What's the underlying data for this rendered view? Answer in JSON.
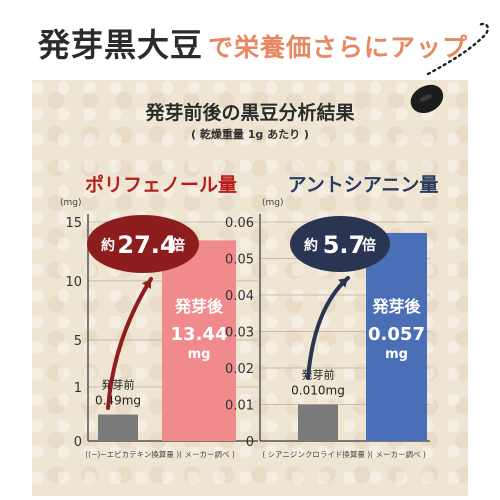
{
  "header": {
    "title_main": "発芽黒大豆",
    "title_sub": "で栄養価さらにアップ"
  },
  "panel": {
    "title": "発芽前後の黒豆分析結果",
    "subtitle": "( 乾燥重量 1g あたり )"
  },
  "colors": {
    "background": "#efe5d3",
    "title_accent": "#e88863",
    "polyphenol_heading": "#b81c1c",
    "polyphenol_bubble": "#8e1e1e",
    "polyphenol_after_bar": "#f08a8c",
    "anthocyanin_heading": "#2c3a5e",
    "anthocyanin_bubble": "#2a3553",
    "anthocyanin_after_bar": "#4a6fb6",
    "before_bar": "#7a7a7a"
  },
  "icons": {
    "decoration": "black-bean-icon"
  },
  "chart_data": [
    {
      "type": "bar",
      "title": "ポリフェノール量",
      "unit": "(mg)",
      "note": "((−)−エピカテキン換算量 )( メーカー調べ )",
      "ylim": [
        0,
        15
      ],
      "yticks": [
        0,
        1,
        5,
        10,
        15
      ],
      "y_scale": "non-linear (0–1 expanded)",
      "grid": true,
      "categories": [
        "発芽前",
        "発芽後"
      ],
      "values": [
        0.49,
        13.44
      ],
      "value_labels": [
        "0.49mg",
        "13.44"
      ],
      "value_unit_labels": [
        "",
        "mg"
      ],
      "callout": {
        "prefix": "約",
        "value": "27.4",
        "suffix": "倍"
      }
    },
    {
      "type": "bar",
      "title": "アントシアニン量",
      "unit": "(mg)",
      "note": "( シアニジンクロライド換算量 )( メーカー調べ )",
      "ylim": [
        0,
        0.06
      ],
      "yticks": [
        0,
        0.01,
        0.02,
        0.03,
        0.04,
        0.05,
        0.06
      ],
      "y_scale": "linear",
      "grid": true,
      "categories": [
        "発芽前",
        "発芽後"
      ],
      "values": [
        0.01,
        0.057
      ],
      "value_labels": [
        "0.010mg",
        "0.057"
      ],
      "value_unit_labels": [
        "",
        "mg"
      ],
      "callout": {
        "prefix": "約",
        "value": "5.7",
        "suffix": "倍"
      }
    }
  ]
}
